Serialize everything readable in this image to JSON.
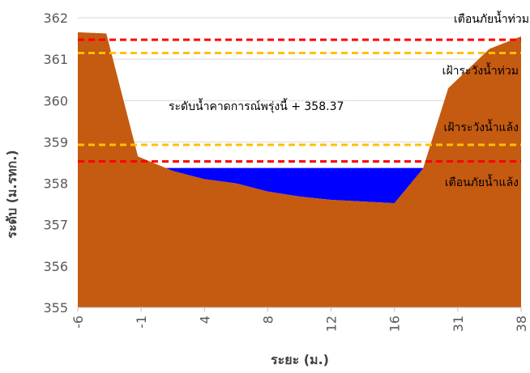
{
  "chart_data": {
    "type": "area",
    "title": "",
    "xlabel": "ระยะ (ม.)",
    "ylabel": "ระดับ (ม.รทก.)",
    "ylim": [
      355,
      362
    ],
    "yticks": [
      "355",
      "356",
      "357",
      "358",
      "359",
      "360",
      "361",
      "362"
    ],
    "x_categories": [
      "-6",
      "-1",
      "4",
      "8",
      "12",
      "16",
      "31",
      "38"
    ],
    "grid": "horizontal",
    "legend": "none",
    "series": [
      {
        "kind": "ground",
        "color": "#C55A11",
        "points": [
          [
            0,
            361.65
          ],
          [
            0.45,
            361.62
          ],
          [
            0.95,
            358.65
          ],
          [
            1.5,
            358.3
          ],
          [
            2,
            358.1
          ],
          [
            2.5,
            358.0
          ],
          [
            3,
            357.8
          ],
          [
            3.5,
            357.68
          ],
          [
            4,
            357.6
          ],
          [
            5,
            357.52
          ],
          [
            5.45,
            358.35
          ],
          [
            5.85,
            360.3
          ],
          [
            6.5,
            361.25
          ],
          [
            7,
            361.55
          ]
        ]
      },
      {
        "kind": "water",
        "color": "#0000FF",
        "level": 358.37
      }
    ],
    "reference_lines": [
      {
        "name": "เตือนภัยน้ำท่วม",
        "value": 361.47,
        "color": "#FF0000"
      },
      {
        "name": "เฝ้าระวังน้ำท่วม",
        "value": 361.15,
        "color": "#FFC000"
      },
      {
        "name": "เฝ้าระวังน้ำแล้ง",
        "value": 358.93,
        "color": "#FFC000"
      },
      {
        "name": "เตือนภัยน้ำแล้ง",
        "value": 358.53,
        "color": "#FF0000"
      }
    ],
    "forecast_label": "ระดับน้ำคาดการณ์พรุ่งนี้ + 358.37"
  }
}
